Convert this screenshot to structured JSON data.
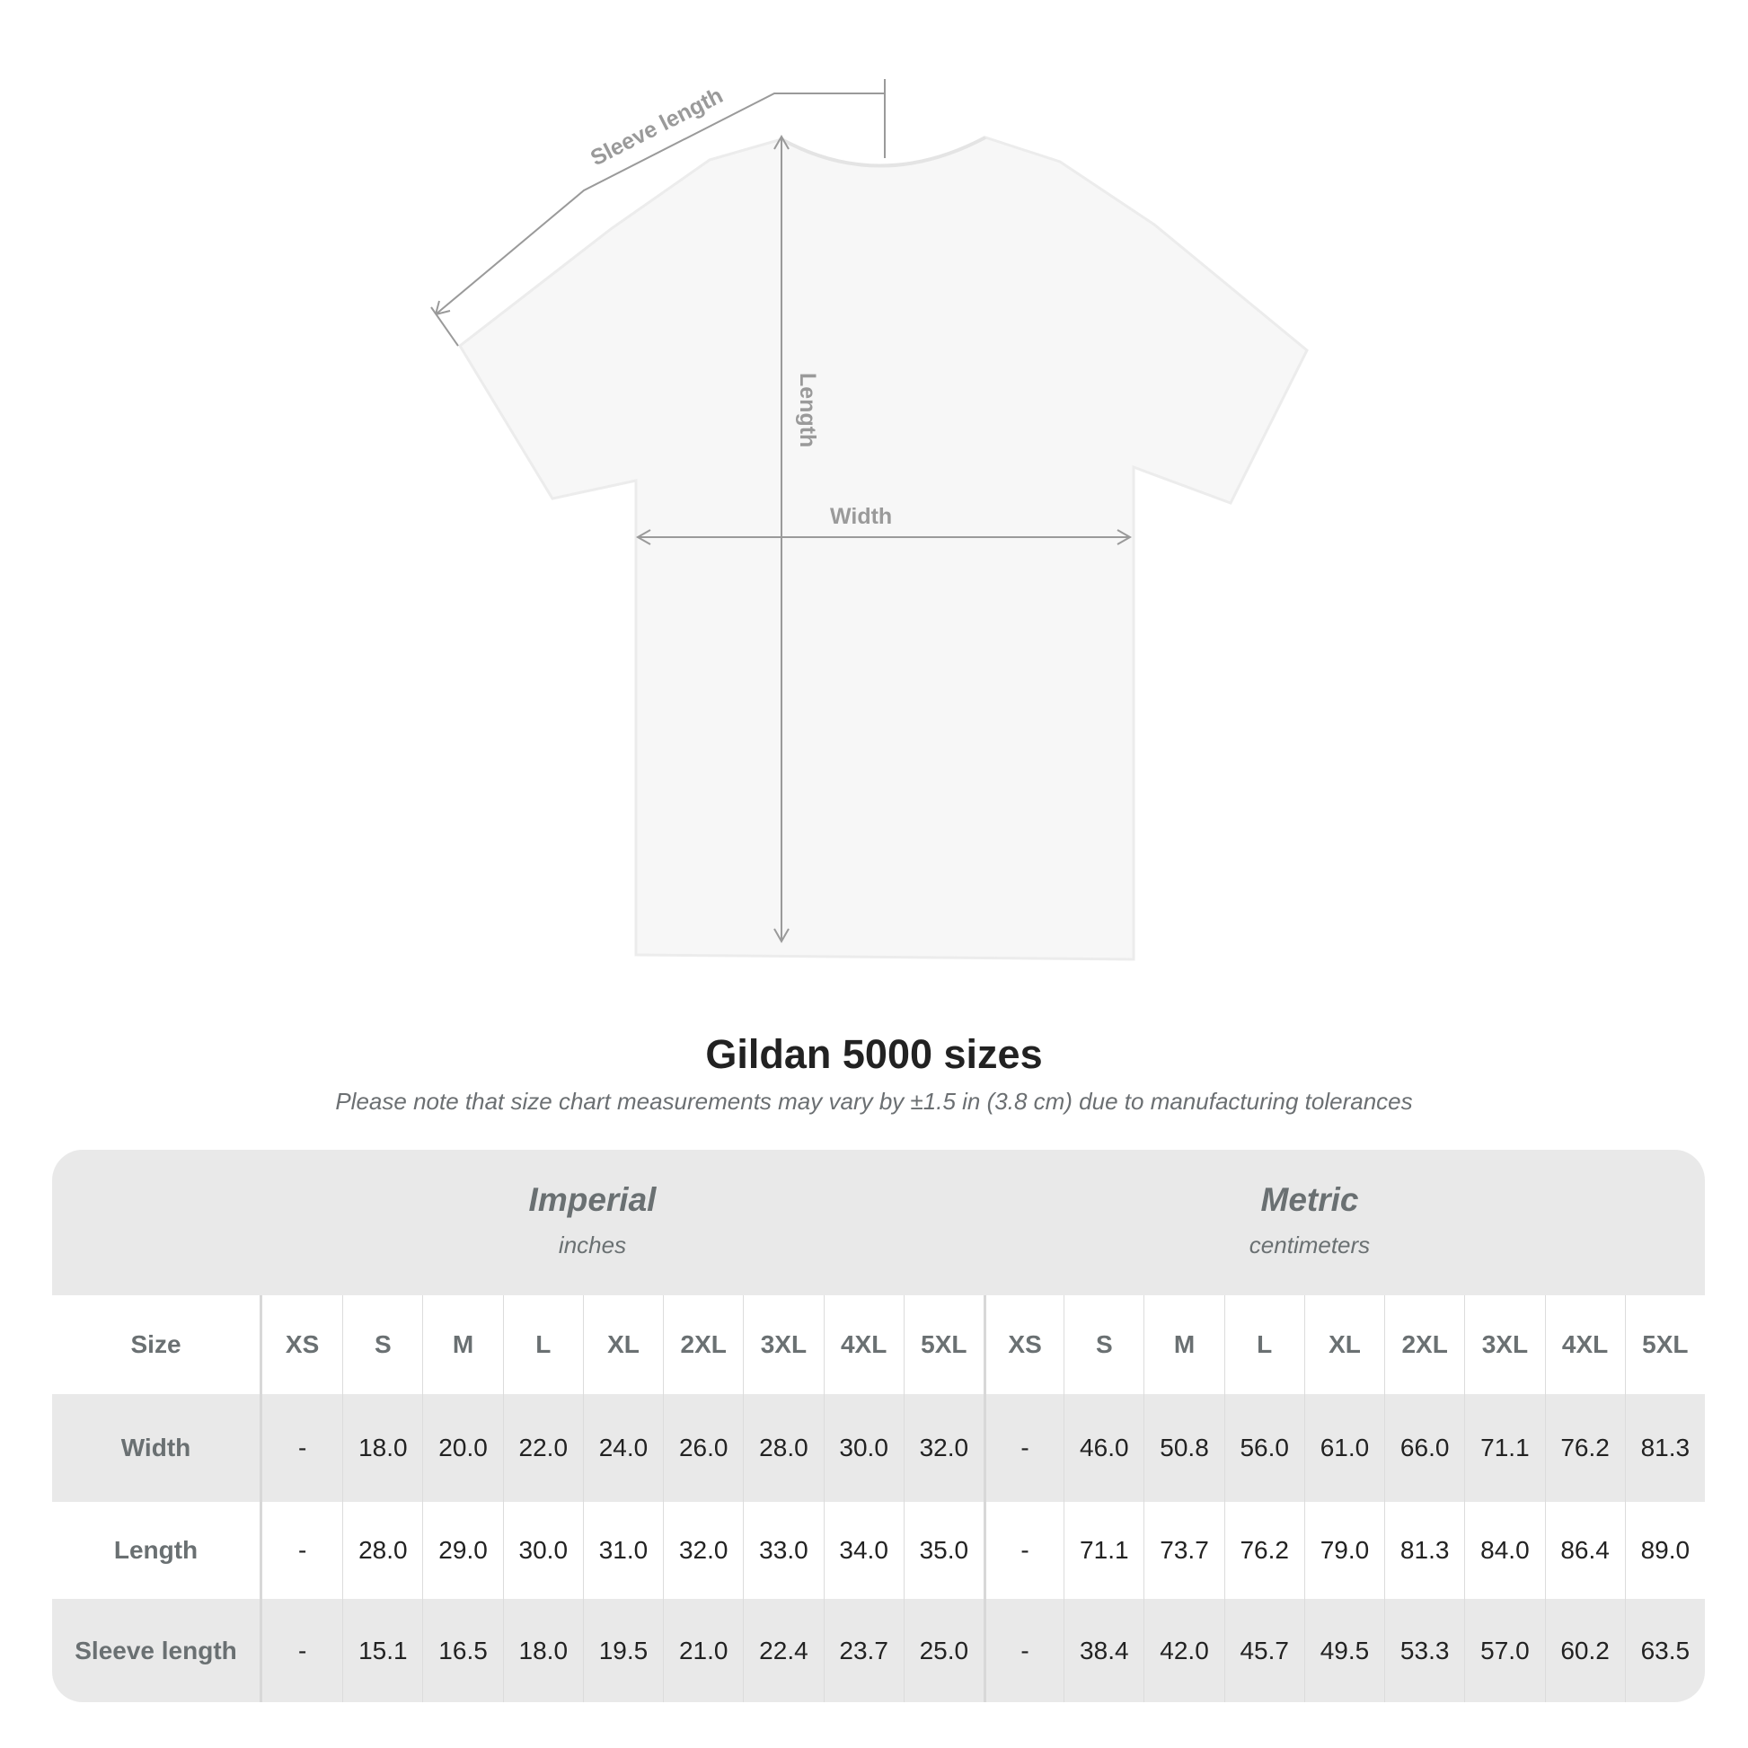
{
  "diagram": {
    "sleeve_label": "Sleeve length",
    "length_label": "Length",
    "width_label": "Width"
  },
  "title": "Gildan 5000 sizes",
  "subtitle": "Please note that size chart measurements may vary by ±1.5 in (3.8 cm) due to manufacturing tolerances",
  "table": {
    "imperial": {
      "title": "Imperial",
      "unit": "inches"
    },
    "metric": {
      "title": "Metric",
      "unit": "centimeters"
    },
    "size_label": "Size",
    "sizes": [
      "XS",
      "S",
      "M",
      "L",
      "XL",
      "2XL",
      "3XL",
      "4XL",
      "5XL"
    ],
    "rows": [
      {
        "label": "Width",
        "imperial": [
          "-",
          "18.0",
          "20.0",
          "22.0",
          "24.0",
          "26.0",
          "28.0",
          "30.0",
          "32.0"
        ],
        "metric": [
          "-",
          "46.0",
          "50.8",
          "56.0",
          "61.0",
          "66.0",
          "71.1",
          "76.2",
          "81.3"
        ]
      },
      {
        "label": "Length",
        "imperial": [
          "-",
          "28.0",
          "29.0",
          "30.0",
          "31.0",
          "32.0",
          "33.0",
          "34.0",
          "35.0"
        ],
        "metric": [
          "-",
          "71.1",
          "73.7",
          "76.2",
          "79.0",
          "81.3",
          "84.0",
          "86.4",
          "89.0"
        ]
      },
      {
        "label": "Sleeve length",
        "imperial": [
          "-",
          "15.1",
          "16.5",
          "18.0",
          "19.5",
          "21.0",
          "22.4",
          "23.7",
          "25.0"
        ],
        "metric": [
          "-",
          "38.4",
          "42.0",
          "45.7",
          "49.5",
          "53.3",
          "57.0",
          "60.2",
          "63.5"
        ]
      }
    ]
  }
}
